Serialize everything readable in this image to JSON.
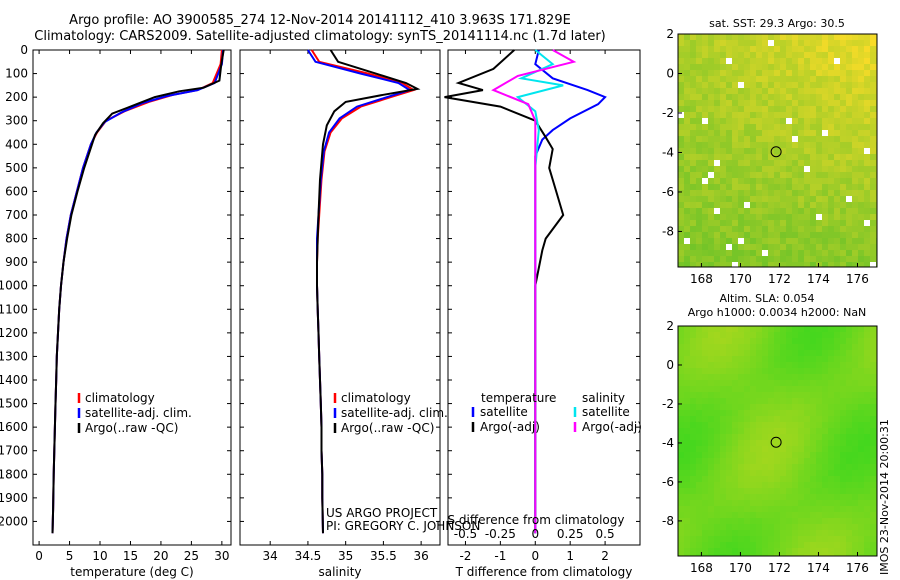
{
  "header": {
    "line1": "Argo profile: AO 3900585_274 12-Nov-2014 20141112_410 3.963S 171.829E",
    "line2": "Climatology: CARS2009. Satellite-adjusted climatology: synTS_20141114.nc (1.7d later)"
  },
  "chart_data": [
    {
      "type": "line",
      "name": "temperature",
      "xlabel": "temperature (deg C)",
      "ylabel": "",
      "xlim": [
        -1,
        31.5
      ],
      "ylim": [
        2100,
        0
      ],
      "xticks": [
        "0",
        "5",
        "10",
        "15",
        "20",
        "25",
        "30"
      ],
      "yticks": [
        "0",
        "100",
        "200",
        "300",
        "400",
        "500",
        "600",
        "700",
        "800",
        "900",
        "1000",
        "1100",
        "1200",
        "1300",
        "1400",
        "1500",
        "1600",
        "1700",
        "1800",
        "1900",
        "2000"
      ],
      "legend": [
        "climatology",
        "satellite-adj. clim.",
        "Argo(..raw -QC)"
      ],
      "series": [
        {
          "name": "climatology",
          "color": "#ff0000",
          "x": [
            30,
            29.8,
            28.5,
            26,
            22,
            18,
            14,
            11,
            9.5,
            8.5,
            7.2,
            6.2,
            5.2,
            4.5,
            4.0,
            3.6,
            3.3,
            3.1,
            2.9,
            2.8,
            2.7,
            2.6,
            2.5,
            2.4,
            2.3,
            2.2
          ],
          "y": [
            0,
            60,
            140,
            170,
            190,
            220,
            260,
            300,
            350,
            400,
            500,
            600,
            700,
            800,
            900,
            1000,
            1100,
            1200,
            1300,
            1400,
            1500,
            1600,
            1700,
            1800,
            1950,
            2050
          ]
        },
        {
          "name": "satellite-adj. clim.",
          "color": "#0000ff",
          "x": [
            30.2,
            30,
            28.8,
            26,
            21,
            17,
            13.5,
            10.8,
            9.4,
            8.5,
            7.2,
            6.2,
            5.2,
            4.5,
            4.0,
            3.6,
            3.3,
            3.1,
            2.9,
            2.8,
            2.7,
            2.6,
            2.5,
            2.4,
            2.3,
            2.2
          ],
          "y": [
            0,
            60,
            140,
            170,
            195,
            225,
            265,
            305,
            350,
            400,
            500,
            600,
            700,
            800,
            900,
            1000,
            1100,
            1200,
            1300,
            1400,
            1500,
            1600,
            1700,
            1800,
            1950,
            2050
          ]
        },
        {
          "name": "Argo(..raw -QC)",
          "color": "#000000",
          "x": [
            30.3,
            29.9,
            29.6,
            27,
            23,
            19,
            16,
            12,
            10.5,
            9.2,
            7.4,
            6.3,
            5.3,
            4.6,
            4.0,
            3.6,
            3.3,
            3.1,
            2.9,
            2.8,
            2.7,
            2.6,
            2.5,
            2.4,
            2.3,
            2.2
          ],
          "y": [
            0,
            60,
            130,
            160,
            175,
            200,
            230,
            270,
            310,
            360,
            500,
            600,
            700,
            800,
            900,
            1000,
            1100,
            1200,
            1300,
            1400,
            1500,
            1600,
            1700,
            1800,
            1950,
            2050
          ]
        }
      ]
    },
    {
      "type": "line",
      "name": "salinity",
      "xlabel": "salinity",
      "xlim": [
        33.6,
        36.25
      ],
      "ylim": [
        2100,
        0
      ],
      "xticks": [
        "34",
        "34.5",
        "35",
        "35.5",
        "36"
      ],
      "legend": [
        "climatology",
        "satellite-adj. clim.",
        "Argo(..raw -QC)"
      ],
      "series": [
        {
          "name": "climatology",
          "color": "#ff0000",
          "x": [
            34.55,
            34.65,
            35.3,
            35.75,
            35.9,
            35.6,
            35.2,
            34.95,
            34.8,
            34.72,
            34.68,
            34.65,
            34.63,
            34.62,
            34.62,
            34.63,
            34.64,
            34.65,
            34.66,
            34.67,
            34.68,
            34.68,
            34.69,
            34.69,
            34.7
          ],
          "y": [
            0,
            50,
            100,
            140,
            170,
            200,
            240,
            290,
            350,
            430,
            550,
            700,
            800,
            900,
            1000,
            1100,
            1200,
            1300,
            1400,
            1500,
            1600,
            1700,
            1800,
            1900,
            2050
          ]
        },
        {
          "name": "satellite-adj. clim.",
          "color": "#0000ff",
          "x": [
            34.5,
            34.6,
            35.2,
            35.7,
            35.85,
            35.55,
            35.15,
            34.92,
            34.78,
            34.71,
            34.67,
            34.64,
            34.62,
            34.62,
            34.62,
            34.63,
            34.64,
            34.65,
            34.66,
            34.67,
            34.68,
            34.68,
            34.69,
            34.69,
            34.7
          ],
          "y": [
            0,
            50,
            100,
            140,
            170,
            200,
            240,
            290,
            350,
            430,
            550,
            700,
            800,
            900,
            1000,
            1100,
            1200,
            1300,
            1400,
            1500,
            1600,
            1700,
            1800,
            1900,
            2050
          ]
        },
        {
          "name": "Argo(..raw -QC)",
          "color": "#000000",
          "x": [
            34.8,
            34.9,
            35.4,
            35.8,
            35.95,
            35.5,
            35.0,
            34.85,
            34.75,
            34.7,
            34.66,
            34.64,
            34.63,
            34.62,
            34.62,
            34.63,
            34.64,
            34.65,
            34.66,
            34.67,
            34.68,
            34.68,
            34.69,
            34.69,
            34.7
          ],
          "y": [
            0,
            50,
            100,
            140,
            165,
            190,
            220,
            260,
            320,
            400,
            550,
            700,
            800,
            900,
            1000,
            1100,
            1200,
            1300,
            1400,
            1500,
            1600,
            1700,
            1800,
            1900,
            2050
          ]
        }
      ],
      "annotations": [
        "US ARGO PROJECT",
        "PI: GREGORY C. JOHNSON"
      ]
    },
    {
      "type": "line",
      "name": "difference",
      "xlabel": "T difference from climatology",
      "xlabel_top": "S difference from climatology",
      "xlim": [
        -2.5,
        3
      ],
      "ylim": [
        2100,
        0
      ],
      "xticks": [
        "-2",
        "-1",
        "0",
        "1",
        "2"
      ],
      "xticks_top": [
        "-0.5",
        "-0.25",
        "0",
        "0.25",
        "0.5"
      ],
      "legend_left_title": "temperature",
      "legend_right_title": "salinity",
      "legend": [
        "satellite",
        "Argo(-adj)",
        "satellite",
        "Argo(-adj)"
      ],
      "series": [
        {
          "name": "T satellite",
          "color": "#0000ff",
          "x": [
            0.1,
            0.0,
            0.5,
            1.5,
            2.0,
            1.8,
            1.0,
            0.5,
            0.2,
            0.0,
            0.0,
            0.0,
            0.0,
            0.0,
            0.0,
            0.0
          ],
          "y": [
            0,
            60,
            120,
            170,
            200,
            230,
            290,
            340,
            380,
            450,
            600,
            900,
            1200,
            1500,
            1800,
            2050
          ]
        },
        {
          "name": "T Argo(-adj)",
          "color": "#000000",
          "x": [
            -0.6,
            -1.2,
            -2.2,
            -1.5,
            -2.6,
            -1.0,
            0.0,
            0.3,
            0.5,
            0.4,
            0.6,
            0.8,
            0.3,
            0.2,
            0.0,
            0.0,
            0.0,
            0.0
          ],
          "y": [
            0,
            80,
            140,
            170,
            200,
            240,
            300,
            370,
            420,
            500,
            600,
            700,
            800,
            850,
            1000,
            1300,
            1700,
            2050
          ]
        },
        {
          "name": "S satellite",
          "color": "#00e5ee",
          "x": [
            0.0,
            0.5,
            -0.4,
            0.8,
            -0.5,
            0.0,
            0.1,
            0.0,
            0.0,
            0.0,
            0.0
          ],
          "y": [
            0,
            60,
            120,
            150,
            200,
            260,
            340,
            500,
            900,
            1500,
            2050
          ]
        },
        {
          "name": "S Argo(-adj)",
          "color": "#ff00ff",
          "x": [
            0.5,
            1.1,
            -0.5,
            -1.2,
            -0.2,
            0.0,
            0.0,
            0.0,
            0.0
          ],
          "y": [
            0,
            50,
            110,
            170,
            230,
            300,
            500,
            1000,
            2050
          ]
        }
      ]
    },
    {
      "type": "heatmap",
      "name": "sst-map",
      "title": "sat. SST: 29.3 Argo: 30.5",
      "xlim": [
        166.8,
        177
      ],
      "ylim": [
        -9.8,
        2
      ],
      "xticks": [
        "168",
        "170",
        "172",
        "174",
        "176"
      ],
      "yticks": [
        "2",
        "0",
        "-2",
        "-4",
        "-6",
        "-8"
      ],
      "marker": {
        "x": 171.829,
        "y": -3.963
      }
    },
    {
      "type": "heatmap",
      "name": "sla-map",
      "title_line1": "Altim. SLA: 0.054",
      "title_line2": "Argo h1000: 0.0034 h2000: NaN",
      "xlim": [
        166.8,
        177
      ],
      "ylim": [
        -9.8,
        2
      ],
      "xticks": [
        "168",
        "170",
        "172",
        "174",
        "176"
      ],
      "yticks": [
        "2",
        "0",
        "-2",
        "-4",
        "-6",
        "-8"
      ],
      "marker": {
        "x": 171.829,
        "y": -3.963
      }
    }
  ],
  "footer_stamp": "IMOS 23-Nov-2014 20:00:31"
}
